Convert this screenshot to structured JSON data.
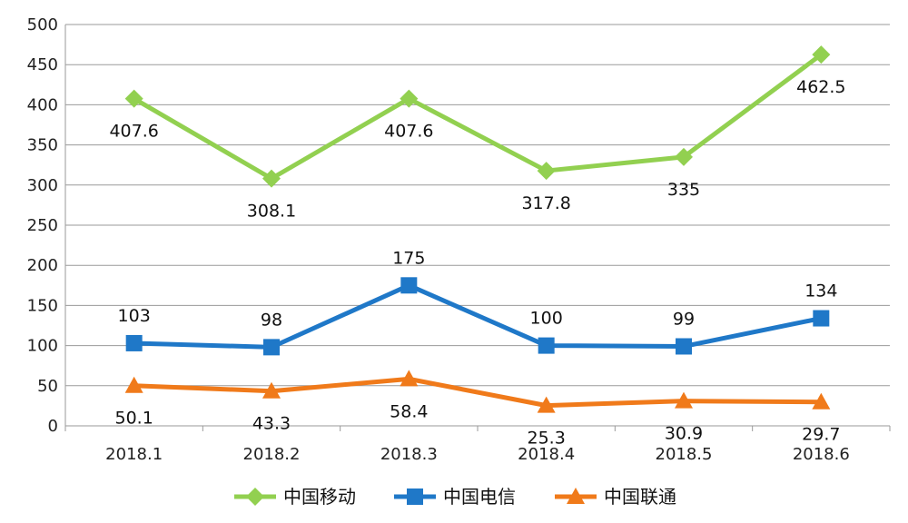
{
  "chart_data": {
    "type": "line",
    "categories": [
      "2018.1",
      "2018.2",
      "2018.3",
      "2018.4",
      "2018.5",
      "2018.6"
    ],
    "ylim": [
      0,
      500
    ],
    "yticks": [
      0,
      50,
      100,
      150,
      200,
      250,
      300,
      350,
      400,
      450,
      500
    ],
    "grid": true,
    "legend_position": "bottom",
    "series": [
      {
        "name": "中国移动",
        "values": [
          407.6,
          308.1,
          407.6,
          317.8,
          335,
          462.5
        ],
        "labels": [
          "407.6",
          "308.1",
          "407.6",
          "317.8",
          "335",
          "462.5"
        ],
        "color": "#92D050",
        "marker": "diamond"
      },
      {
        "name": "中国电信",
        "values": [
          103,
          98,
          175,
          100,
          99,
          134
        ],
        "labels": [
          "103",
          "98",
          "175",
          "100",
          "99",
          "134"
        ],
        "color": "#1F78C8",
        "marker": "square"
      },
      {
        "name": "中国联通",
        "values": [
          50.1,
          43.3,
          58.4,
          25.3,
          30.9,
          29.7
        ],
        "labels": [
          "50.1",
          "43.3",
          "58.4",
          "25.3",
          "30.9",
          "29.7"
        ],
        "color": "#F07A1A",
        "marker": "triangle"
      }
    ]
  }
}
